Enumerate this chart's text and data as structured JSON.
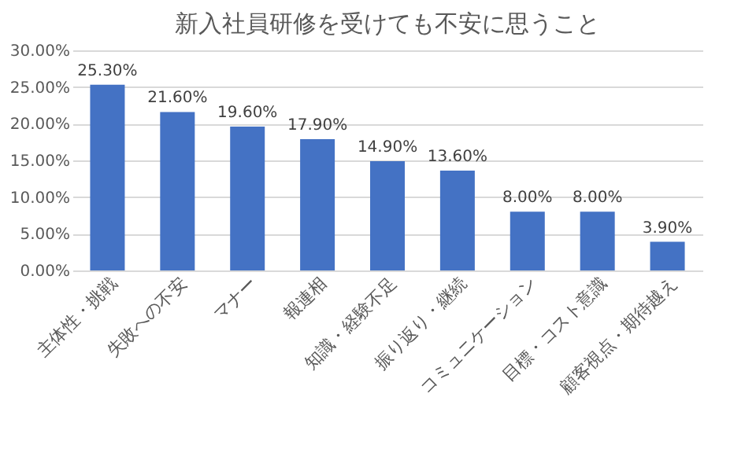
{
  "chart_data": {
    "type": "bar",
    "title": "新入社員研修を受けても不安に思うこと",
    "categories": [
      "主体性・挑戦",
      "失敗への不安",
      "マナー",
      "報連相",
      "知識・経験不足",
      "振り返り・継続",
      "コミュニケーション",
      "目標・コスト意識",
      "顧客視点・期待越え"
    ],
    "values": [
      25.3,
      21.6,
      19.6,
      17.9,
      14.9,
      13.6,
      8.0,
      8.0,
      3.9
    ],
    "value_labels": [
      "25.30%",
      "21.60%",
      "19.60%",
      "17.90%",
      "14.90%",
      "13.60%",
      "8.00%",
      "8.00%",
      "3.90%"
    ],
    "color": "#4472c4",
    "ylim": [
      0,
      30
    ],
    "yticks": [
      {
        "value": 0,
        "label": "0.00%"
      },
      {
        "value": 5,
        "label": "5.00%"
      },
      {
        "value": 10,
        "label": "10.00%"
      },
      {
        "value": 15,
        "label": "15.00%"
      },
      {
        "value": 20,
        "label": "20.00%"
      },
      {
        "value": 25,
        "label": "25.00%"
      },
      {
        "value": 30,
        "label": "30.00%"
      }
    ],
    "grid": "y"
  }
}
